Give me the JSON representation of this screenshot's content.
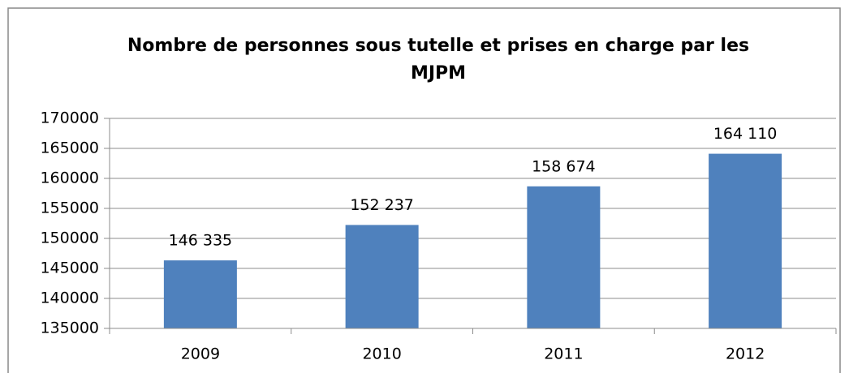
{
  "chart_data": {
    "type": "bar",
    "title": "Nombre de personnes sous tutelle et prises en charge par les MJPM",
    "categories": [
      "2009",
      "2010",
      "2011",
      "2012"
    ],
    "values": [
      146335,
      152237,
      158674,
      164110
    ],
    "value_labels": [
      "146 335",
      "152 237",
      "158 674",
      "164 110"
    ],
    "color": "#4f81bd",
    "ylim": [
      135000,
      170000
    ],
    "yticks": [
      135000,
      140000,
      145000,
      150000,
      155000,
      160000,
      165000,
      170000
    ],
    "grid": true
  }
}
